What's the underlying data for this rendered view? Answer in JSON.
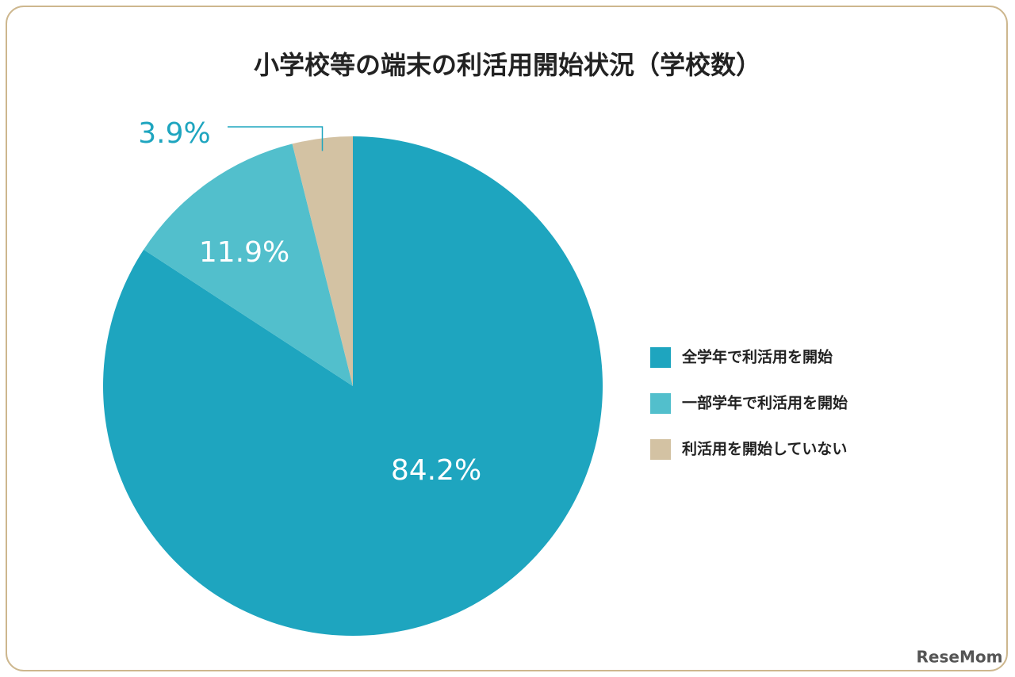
{
  "chart_data": {
    "type": "pie",
    "title": "小学校等の端末の利活用開始状況（学校数）",
    "categories": [
      "全学年で利活用を開始",
      "一部学年で利活用を開始",
      "利活用を開始していない"
    ],
    "values": [
      84.2,
      11.9,
      3.9
    ],
    "value_labels": [
      "84.2%",
      "11.9%",
      "3.9%"
    ],
    "colors": [
      "#1ea5bf",
      "#52bfcc",
      "#d3c2a3"
    ],
    "watermark": "ReseMom"
  }
}
